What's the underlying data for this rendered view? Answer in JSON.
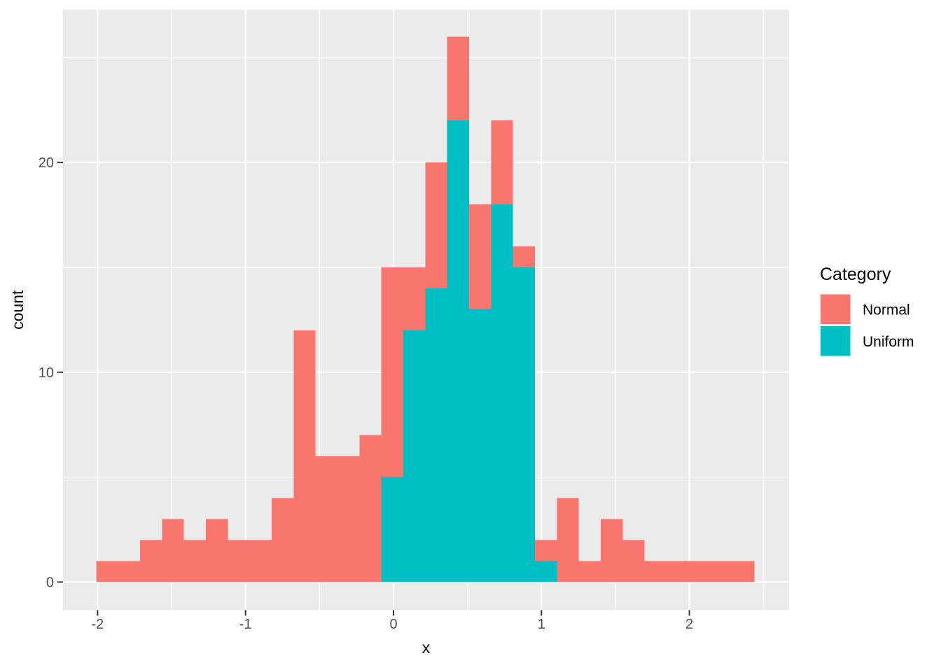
{
  "chart_data": {
    "type": "bar",
    "subtype": "stacked-histogram",
    "title": "",
    "xlabel": "x",
    "ylabel": "count",
    "bin_start": -2.01,
    "bin_width": 0.1483,
    "n_bins": 30,
    "stack_order_bottom_to_top": [
      "Uniform",
      "Normal"
    ],
    "series": [
      {
        "name": "Normal",
        "color": "#F8766D",
        "values": [
          1,
          1,
          2,
          3,
          2,
          3,
          2,
          2,
          4,
          12,
          6,
          6,
          7,
          10,
          3,
          6,
          4,
          5,
          4,
          1,
          1,
          4,
          1,
          3,
          2,
          1,
          1,
          1,
          1,
          1
        ]
      },
      {
        "name": "Uniform",
        "color": "#00BFC4",
        "values": [
          0,
          0,
          0,
          0,
          0,
          0,
          0,
          0,
          0,
          0,
          0,
          0,
          0,
          5,
          12,
          14,
          22,
          13,
          18,
          15,
          1,
          0,
          0,
          0,
          0,
          0,
          0,
          0,
          0,
          0
        ]
      }
    ],
    "x_ticks": [
      {
        "value": -2,
        "label": "-2"
      },
      {
        "value": -1,
        "label": "-1"
      },
      {
        "value": 0,
        "label": "0"
      },
      {
        "value": 1,
        "label": "1"
      },
      {
        "value": 2,
        "label": "2"
      }
    ],
    "y_ticks": [
      {
        "value": 0,
        "label": "0"
      },
      {
        "value": 10,
        "label": "10"
      },
      {
        "value": 20,
        "label": "20"
      }
    ],
    "x_minor_gridlines": [
      -1.5,
      -0.5,
      0.5,
      1.5,
      2.5
    ],
    "y_minor_gridlines": [
      5,
      15,
      25
    ],
    "xlim": [
      -2.235,
      2.675
    ],
    "ylim": [
      -1.38,
      27.3
    ],
    "grid": "on",
    "legend": {
      "title": "Category",
      "position": "right",
      "items": [
        {
          "label": "Normal",
          "color": "#F8766D"
        },
        {
          "label": "Uniform",
          "color": "#00BFC4"
        }
      ]
    },
    "style_colors": {
      "panel_background": "#EBEBEB",
      "gridline": "#FFFFFF",
      "tick_mark": "#333333",
      "tick_label": "#4D4D4D",
      "axis_title": "#000000"
    }
  }
}
